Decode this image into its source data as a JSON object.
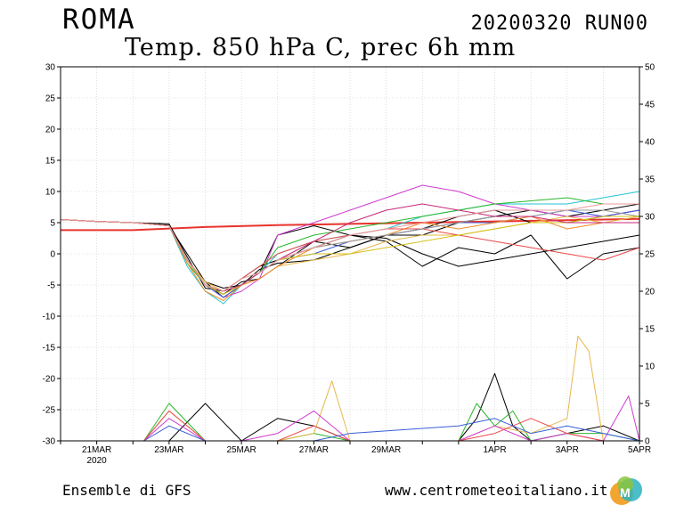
{
  "header": {
    "city": "ROMA",
    "run": "20200320 RUN00",
    "title": "Temp. 850 hPa C, prec 6h mm"
  },
  "footer": {
    "left": "Ensemble di GFS",
    "right": "www.centrometeoitaliano.it"
  },
  "chart_data": {
    "type": "line",
    "title": "Temp. 850 hPa C, prec 6h mm",
    "x_tick_labels": [
      "21MAR",
      "23MAR",
      "25MAR",
      "27MAR",
      "29MAR",
      "1APR",
      "3APR",
      "5APR"
    ],
    "x_tick_days": [
      1,
      3,
      5,
      7,
      9,
      12,
      14,
      16
    ],
    "x_sublabel": "2020",
    "x_range_days": [
      0,
      16
    ],
    "y_left": {
      "label": "Temp. 850 hPa C",
      "range": [
        -30,
        30
      ],
      "ticks": [
        30,
        25,
        20,
        15,
        10,
        5,
        0,
        -5,
        -10,
        -15,
        -20,
        -25,
        -30
      ]
    },
    "y_right": {
      "label": "prec 6h mm",
      "range": [
        0,
        50
      ],
      "ticks": [
        50,
        45,
        40,
        35,
        30,
        25,
        20,
        15,
        10,
        5,
        0
      ]
    },
    "grid": true,
    "x_unit": "days after 20 March 2020 (00 UTC)",
    "climatology": {
      "color": "#e8342c",
      "x": [
        0,
        2,
        4,
        6,
        8,
        10,
        12,
        14,
        16
      ],
      "y": [
        3.8,
        3.8,
        4.3,
        4.6,
        4.8,
        5.0,
        5.2,
        5.4,
        5.6
      ]
    },
    "temperature_members": [
      {
        "color": "#000000",
        "x": [
          0,
          1,
          2,
          3,
          3.5,
          4,
          4.5,
          5,
          5.5,
          6,
          7,
          8,
          9,
          10,
          11,
          12,
          13,
          14,
          15,
          16
        ],
        "y": [
          5.5,
          5.2,
          5,
          4.5,
          0,
          -4.5,
          -7,
          -5,
          -3,
          3,
          4.5,
          3,
          2.5,
          0,
          -2,
          -1,
          0,
          1,
          2,
          3
        ]
      },
      {
        "color": "#000000",
        "x": [
          0,
          1,
          2,
          3,
          3.5,
          4,
          4.5,
          5,
          5.5,
          6,
          7,
          8,
          9,
          10,
          11,
          12,
          13,
          14,
          15,
          16
        ],
        "y": [
          5.5,
          5.2,
          5,
          4.5,
          -1,
          -5,
          -6.5,
          -4.5,
          -4,
          -2,
          2,
          1,
          3,
          3,
          5,
          6,
          7,
          6,
          7,
          8
        ]
      },
      {
        "color": "#000000",
        "x": [
          0,
          1,
          2,
          3,
          3.5,
          4,
          4.5,
          5,
          5.5,
          6,
          7,
          8,
          9,
          10,
          11,
          12,
          13,
          14,
          15,
          16
        ],
        "y": [
          5.5,
          5.2,
          5,
          4.8,
          -0.5,
          -5.5,
          -6,
          -4,
          -2,
          -1,
          1,
          3,
          2,
          -2,
          1,
          0,
          3,
          -4,
          0,
          1
        ]
      },
      {
        "color": "#000000",
        "x": [
          0,
          1,
          2,
          3,
          3.5,
          4,
          4.5,
          5,
          5.5,
          6,
          7,
          8,
          9,
          10,
          11,
          12,
          13,
          14,
          15,
          16
        ],
        "y": [
          5.5,
          5.2,
          5,
          4.6,
          -1,
          -4.5,
          -5.5,
          -5,
          -2.5,
          -1.5,
          -1,
          1,
          3,
          4,
          6,
          7,
          5,
          5,
          6,
          7
        ]
      },
      {
        "color": "#22c4d4",
        "x": [
          0,
          1,
          2,
          3,
          3.5,
          4,
          4.5,
          5,
          5.5,
          6,
          7,
          8,
          9,
          10,
          11,
          12,
          13,
          14,
          15,
          16
        ],
        "y": [
          5.5,
          5.2,
          5,
          4.5,
          -2,
          -6,
          -8,
          -5,
          -3,
          0,
          2,
          3,
          4,
          6,
          7,
          8,
          8,
          8,
          9,
          10
        ]
      },
      {
        "color": "#d03bd0",
        "x": [
          0,
          1,
          2,
          3,
          3.5,
          4,
          4.5,
          5,
          5.5,
          6,
          7,
          8,
          9,
          10,
          11,
          12,
          13,
          14,
          15,
          16
        ],
        "y": [
          5.5,
          5.2,
          5,
          4.5,
          -1,
          -5,
          -7,
          -6,
          -4,
          3,
          5,
          7,
          9,
          11,
          10,
          8,
          7,
          6,
          6,
          7
        ]
      },
      {
        "color": "#2ab82a",
        "x": [
          0,
          1,
          2,
          3,
          3.5,
          4,
          4.5,
          5,
          5.5,
          6,
          7,
          8,
          9,
          10,
          11,
          12,
          13,
          14,
          15,
          16
        ],
        "y": [
          5.5,
          5.2,
          5,
          4.5,
          -1.5,
          -5,
          -6,
          -5,
          -3,
          1,
          3,
          4,
          5,
          6,
          7,
          8,
          8.5,
          9,
          8,
          8
        ]
      },
      {
        "color": "#e6b84a",
        "x": [
          0,
          1,
          2,
          3,
          3.5,
          4,
          4.5,
          5,
          5.5,
          6,
          7,
          8,
          9,
          10,
          11,
          12,
          13,
          14,
          15,
          16
        ],
        "y": [
          5.5,
          5.2,
          5,
          4.5,
          -1,
          -4.5,
          -6,
          -5,
          -4,
          -2,
          -1,
          0,
          2,
          3,
          3,
          4,
          5,
          6,
          5,
          6
        ]
      },
      {
        "color": "#3a5ed8",
        "x": [
          0,
          1,
          2,
          3,
          3.5,
          4,
          4.5,
          5,
          5.5,
          6,
          7,
          8,
          9,
          10,
          11,
          12,
          13,
          14,
          15,
          16
        ],
        "y": [
          5.5,
          5.2,
          5,
          4.5,
          -1,
          -5,
          -7,
          -5,
          -3,
          -1,
          0,
          2,
          3,
          4,
          5,
          5,
          6,
          7,
          6,
          7
        ]
      },
      {
        "color": "#f28c28",
        "x": [
          0,
          1,
          2,
          3,
          3.5,
          4,
          4.5,
          5,
          5.5,
          6,
          7,
          8,
          9,
          10,
          11,
          12,
          13,
          14,
          15,
          16
        ],
        "y": [
          5.5,
          5.2,
          5,
          4.5,
          -1.5,
          -6,
          -7.5,
          -5,
          -4,
          -2,
          1,
          2,
          3,
          5,
          4,
          5,
          6,
          4,
          5,
          5
        ]
      },
      {
        "color": "#e84a4a",
        "x": [
          0,
          1,
          2,
          3,
          3.5,
          4,
          4.5,
          5,
          5.5,
          6,
          7,
          8,
          9,
          10,
          11,
          12,
          13,
          14,
          15,
          16
        ],
        "y": [
          5.5,
          5.2,
          5,
          4.5,
          -1,
          -5,
          -6,
          -4,
          -2,
          0,
          2,
          3,
          4,
          4,
          3,
          2,
          1,
          0,
          -1,
          1
        ]
      },
      {
        "color": "#9a9a9a",
        "x": [
          0,
          1,
          2,
          3,
          3.5,
          4,
          4.5,
          5,
          5.5,
          6,
          7,
          8,
          9,
          10,
          11,
          12,
          13,
          14,
          15,
          16
        ],
        "y": [
          5.5,
          5.2,
          5,
          4.5,
          -1,
          -5,
          -6,
          -5,
          -3,
          -1,
          1,
          2,
          3,
          4,
          5,
          6,
          6,
          7,
          7,
          6
        ]
      },
      {
        "color": "#d4c21a",
        "x": [
          0,
          1,
          2,
          3,
          3.5,
          4,
          4.5,
          5,
          5.5,
          6,
          7,
          8,
          9,
          10,
          11,
          12,
          13,
          14,
          15,
          16
        ],
        "y": [
          5.5,
          5.2,
          5,
          4.5,
          -1,
          -5,
          -6.5,
          -5,
          -3,
          -1,
          0,
          0,
          1,
          2,
          3,
          4,
          5,
          5,
          6,
          6
        ]
      },
      {
        "color": "#c82878",
        "x": [
          0,
          1,
          2,
          3,
          3.5,
          4,
          4.5,
          5,
          5.5,
          6,
          7,
          8,
          9,
          10,
          11,
          12,
          13,
          14,
          15,
          16
        ],
        "y": [
          5.5,
          5.2,
          5,
          4.5,
          -1,
          -5,
          -6,
          -5,
          -3,
          -1,
          2,
          5,
          7,
          8,
          7,
          6,
          6,
          5,
          5,
          5
        ]
      },
      {
        "color": "#e89a9a",
        "x": [
          0,
          1,
          2,
          3,
          3.5,
          4,
          4.5,
          5,
          5.5,
          6,
          7,
          8,
          9,
          10,
          11,
          12,
          13,
          14,
          15,
          16
        ],
        "y": [
          5.5,
          5.2,
          5,
          4.5,
          -1,
          -5,
          -6,
          -4,
          -3,
          -1,
          1,
          3,
          4,
          5,
          6,
          7,
          7,
          7,
          8,
          8
        ]
      }
    ],
    "precipitation_members": [
      {
        "color": "#000000",
        "x": [
          2.3,
          3,
          4,
          5,
          6,
          7,
          8,
          11,
          11.5,
          12,
          12.5,
          13,
          14,
          15,
          16
        ],
        "y": [
          0,
          0,
          5,
          0,
          3,
          2,
          0,
          0,
          3,
          9,
          2,
          0,
          1,
          2,
          0
        ]
      },
      {
        "color": "#2ab82a",
        "x": [
          2.3,
          3,
          4,
          5,
          6,
          7,
          8,
          11,
          11.5,
          12,
          12.5,
          13,
          14,
          15,
          16
        ],
        "y": [
          0,
          5,
          0,
          0,
          0,
          1,
          0,
          0,
          5,
          2,
          4,
          0,
          1,
          1,
          0
        ]
      },
      {
        "color": "#e6b84a",
        "x": [
          2.3,
          3,
          4,
          5,
          6,
          7,
          7.5,
          8,
          11,
          12,
          13,
          14,
          14.3,
          14.6,
          15,
          16
        ],
        "y": [
          0,
          4,
          0,
          0,
          0,
          1,
          8,
          0,
          0,
          2,
          1,
          3,
          14,
          12,
          0,
          0
        ]
      },
      {
        "color": "#d03bd0",
        "x": [
          2.3,
          3,
          4,
          5,
          6,
          7,
          8,
          11,
          12,
          13,
          14,
          15,
          15.7,
          16
        ],
        "y": [
          0,
          3,
          0,
          0,
          1,
          4,
          0,
          0,
          2,
          0,
          1,
          0,
          6,
          0
        ]
      },
      {
        "color": "#e84a4a",
        "x": [
          2.3,
          3,
          4,
          5,
          6,
          7,
          8,
          11,
          12,
          13,
          14,
          15,
          16
        ],
        "y": [
          0,
          4,
          0,
          0,
          0,
          2,
          0,
          0,
          1,
          3,
          1,
          0,
          0
        ]
      },
      {
        "color": "#3a5ed8",
        "x": [
          2.3,
          3,
          4,
          5,
          6,
          7,
          8,
          11,
          12,
          13,
          14,
          15,
          16
        ],
        "y": [
          0,
          2,
          0,
          0,
          0,
          0,
          1,
          2,
          3,
          1,
          2,
          1,
          0
        ]
      }
    ]
  }
}
